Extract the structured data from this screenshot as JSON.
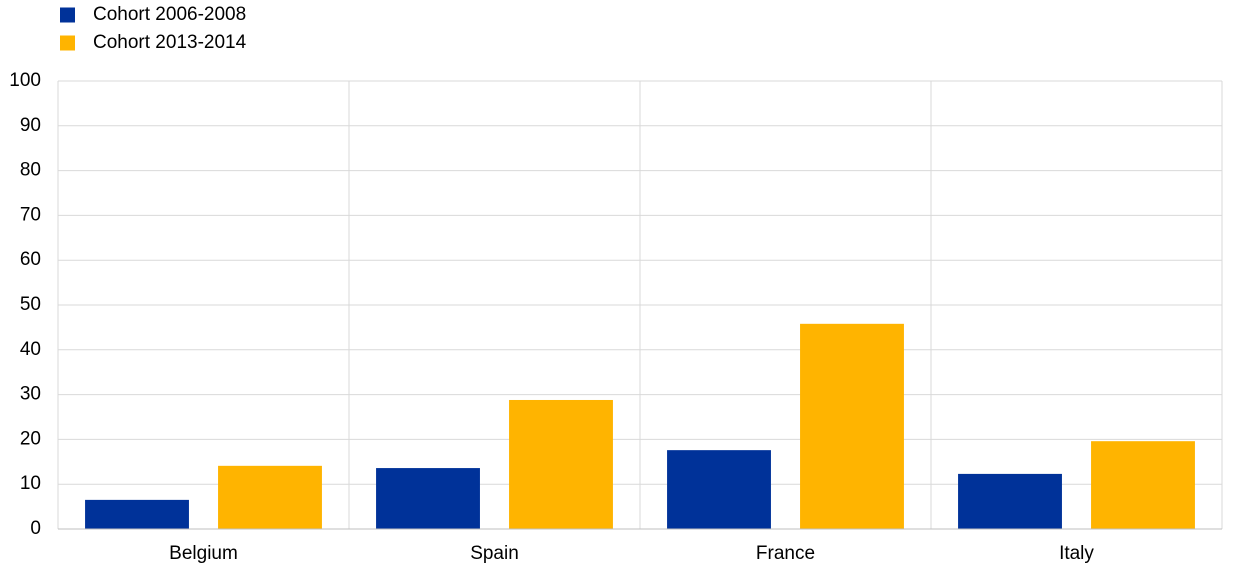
{
  "chart_data": {
    "type": "bar",
    "categories": [
      "Belgium",
      "Spain",
      "France",
      "Italy"
    ],
    "series": [
      {
        "name": "Cohort 2006-2008",
        "color": "#003299",
        "values": [
          6.5,
          13.6,
          17.6,
          12.3
        ]
      },
      {
        "name": "Cohort 2013-2014",
        "color": "#ffb400",
        "values": [
          14.1,
          28.8,
          45.8,
          19.6
        ]
      }
    ],
    "ylim": [
      0,
      100
    ],
    "yticks": [
      0,
      10,
      20,
      30,
      40,
      50,
      60,
      70,
      80,
      90,
      100
    ],
    "grid": true,
    "legend": "top-left"
  }
}
